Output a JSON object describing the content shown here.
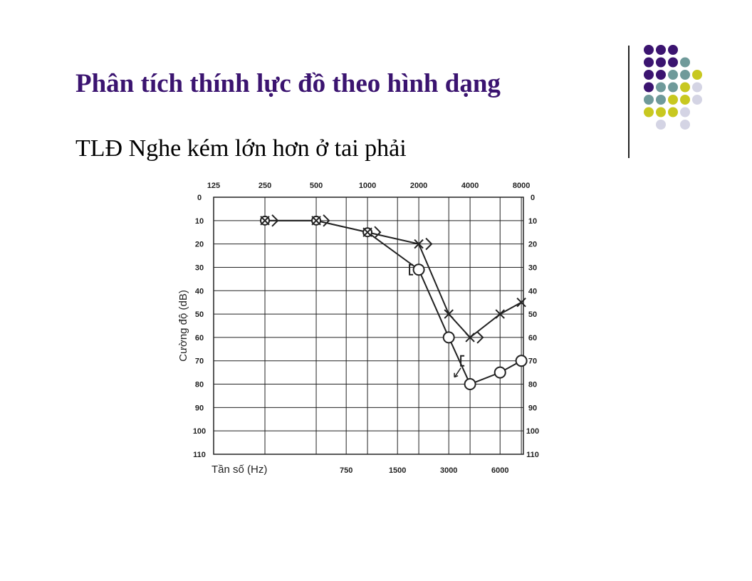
{
  "slide": {
    "title": "Phân tích thính lực đồ theo hình dạng",
    "subtitle": "TLĐ Nghe kém lớn hơn ở tai phải"
  },
  "colors": {
    "title": "#3b1470",
    "dot_purple": "#3b1470",
    "dot_teal": "#6f9a9a",
    "dot_yellow": "#c8c820",
    "dot_lavender": "#d4d4e4",
    "chart_line": "#222222"
  },
  "decoration": {
    "dot_grid": [
      [
        "purple",
        "purple",
        "purple",
        null,
        null
      ],
      [
        "purple",
        "purple",
        "purple",
        "teal",
        null
      ],
      [
        "purple",
        "purple",
        "teal",
        "teal",
        "yellow"
      ],
      [
        "purple",
        "teal",
        "teal",
        "yellow",
        "lavender"
      ],
      [
        "teal",
        "teal",
        "yellow",
        "yellow",
        "lavender"
      ],
      [
        "yellow",
        "yellow",
        "yellow",
        "lavender",
        null
      ],
      [
        null,
        "lavender",
        null,
        "lavender",
        null
      ]
    ]
  },
  "chart_data": {
    "type": "line",
    "ylabel": "Cường độ (dB)",
    "xlabel": "Tần số (Hz)",
    "x_scale": "log2",
    "ylim": [
      110,
      0
    ],
    "y_ticks": [
      0,
      10,
      20,
      30,
      40,
      50,
      60,
      70,
      80,
      90,
      100,
      110
    ],
    "top_ticks": [
      125,
      250,
      500,
      1000,
      2000,
      4000,
      8000
    ],
    "bottom_ticks": [
      750,
      1500,
      3000,
      6000
    ],
    "grid": true,
    "series": [
      {
        "marker": "X",
        "x": [
          250,
          500,
          1000,
          2000,
          3000,
          4000,
          6000,
          8000
        ],
        "y": [
          10,
          10,
          15,
          20,
          50,
          60,
          50,
          45
        ]
      },
      {
        "marker": "O",
        "x": [
          250,
          500,
          1000,
          2000,
          3000,
          4000,
          6000,
          8000
        ],
        "y": [
          10,
          10,
          15,
          31,
          60,
          80,
          75,
          70
        ]
      }
    ],
    "bone_right_markers": [
      {
        "symbol": ">",
        "x": 250,
        "y": 10
      },
      {
        "symbol": ">",
        "x": 500,
        "y": 10
      },
      {
        "symbol": ">",
        "x": 1000,
        "y": 15
      },
      {
        "symbol": ">",
        "x": 2000,
        "y": 20
      },
      {
        "symbol": ">",
        "x": 4000,
        "y": 60
      }
    ],
    "bone_left_markers": [
      {
        "symbol": "[",
        "x": 2000,
        "y": 31
      },
      {
        "symbol": "[",
        "x": 4000,
        "y": 70,
        "arrow": true
      }
    ]
  }
}
